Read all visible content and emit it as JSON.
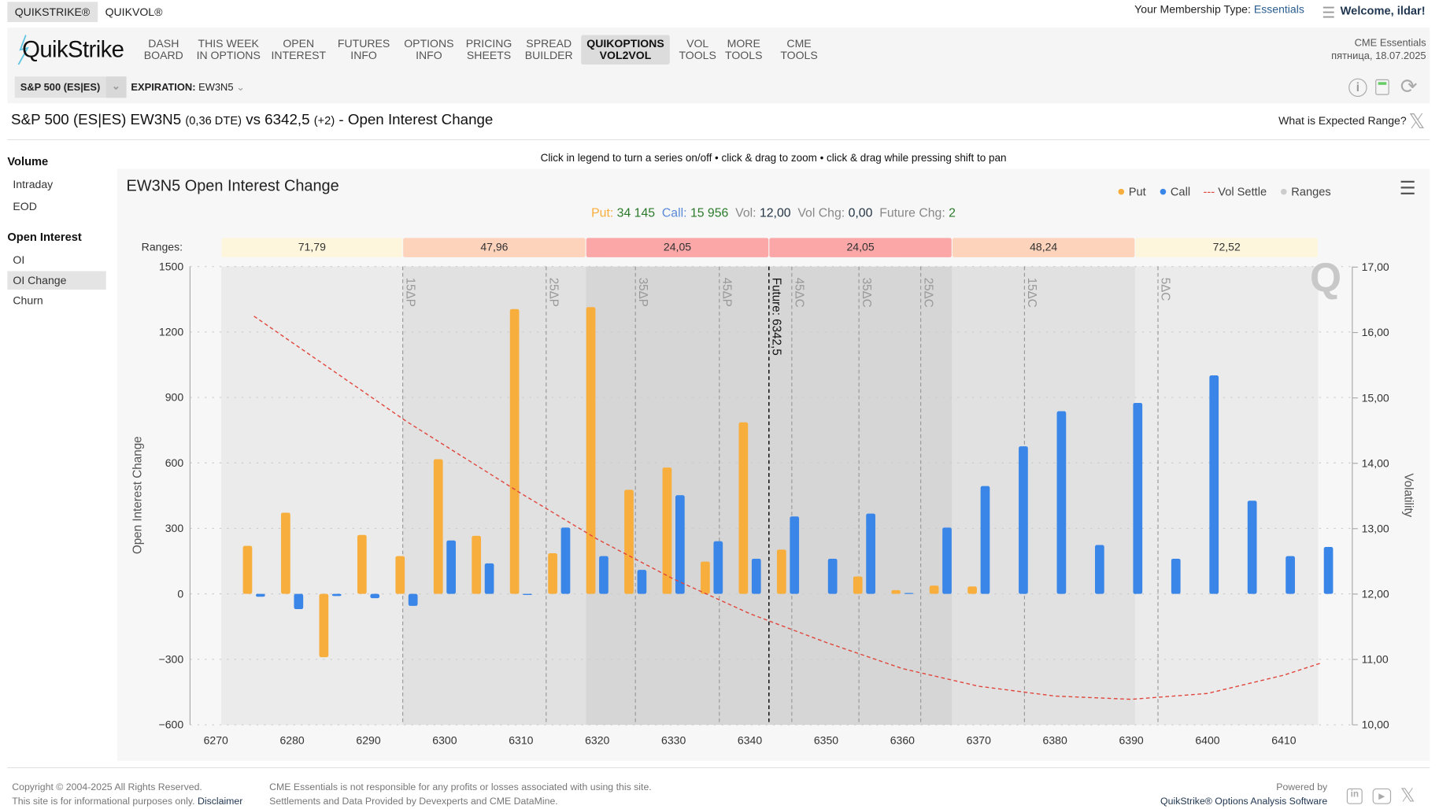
{
  "topbar": {
    "tabs": [
      "QUIKSTRIKE®",
      "QUIKVOL®"
    ],
    "membership_label": "Your Membership Type:",
    "membership_value": "Essentials",
    "welcome": "Welcome, ildar!"
  },
  "nav": {
    "logo": "QuikStrike",
    "items": [
      [
        "DASH",
        "BOARD"
      ],
      [
        "THIS WEEK",
        "IN OPTIONS"
      ],
      [
        "OPEN",
        "INTEREST"
      ],
      [
        "FUTURES",
        "INFO"
      ],
      [
        "OPTIONS",
        "INFO"
      ],
      [
        "PRICING",
        "SHEETS"
      ],
      [
        "SPREAD",
        "BUILDER"
      ],
      [
        "QUIKOPTIONS",
        "VOL2VOL"
      ],
      [
        "VOL",
        "TOOLS"
      ],
      [
        "MORE",
        "TOOLS"
      ],
      [
        "CME",
        "TOOLS"
      ]
    ],
    "active_index": 7,
    "org": "CME Essentials",
    "date": "пятница, 18.07.2025"
  },
  "selector": {
    "product": "S&P 500 (ES|ES)",
    "expiration_label": "EXPIRATION:",
    "expiration_value": "EW3N5"
  },
  "title": {
    "main": "S&P 500 (ES|ES) EW3N5",
    "dte": "(0,36 DTE)",
    "vs": "vs 6342,5",
    "chg": "(+2)",
    "suffix": "- Open Interest Change",
    "expected_range_link": "What is Expected Range?"
  },
  "sidebar": {
    "sections": [
      {
        "heading": "Volume",
        "items": [
          "Intraday",
          "EOD"
        ]
      },
      {
        "heading": "Open Interest",
        "items": [
          "OI",
          "OI Change",
          "Churn"
        ]
      }
    ],
    "selected": "OI Change"
  },
  "instructions": "Click in legend to turn a series on/off • click & drag to zoom • click & drag while pressing shift to pan",
  "chart_data": {
    "type": "bar",
    "title": "EW3N5 Open Interest Change",
    "summary": {
      "put_label": "Put:",
      "put_value": "34 145",
      "call_label": "Call:",
      "call_value": "15 956",
      "vol_label": "Vol:",
      "vol_value": "12,00",
      "volchg_label": "Vol Chg:",
      "volchg_value": "0,00",
      "futchg_label": "Future Chg:",
      "futchg_value": "2"
    },
    "legend": [
      "Put",
      "Call",
      "Vol Settle",
      "Ranges"
    ],
    "legend_placement": "top-right",
    "colors": {
      "put": "#f8ae3c",
      "call": "#3a86e8",
      "vol": "#e0463c"
    },
    "ylabel": "Open Interest Change",
    "y2label": "Volatility",
    "ylim": [
      -600,
      1500
    ],
    "yticks": [
      1500,
      1200,
      900,
      600,
      300,
      0,
      -300,
      -600
    ],
    "y2lim": [
      10,
      17
    ],
    "y2ticks": [
      "17,00",
      "16,00",
      "15,00",
      "14,00",
      "13,00",
      "12,00",
      "11,00",
      "10,00"
    ],
    "xticks": [
      6270,
      6280,
      6290,
      6300,
      6310,
      6320,
      6330,
      6340,
      6350,
      6360,
      6370,
      6380,
      6390,
      6400,
      6410
    ],
    "strikes": [
      6275,
      6280,
      6285,
      6290,
      6295,
      6300,
      6305,
      6310,
      6315,
      6320,
      6325,
      6330,
      6335,
      6340,
      6345,
      6350,
      6355,
      6360,
      6365,
      6370,
      6375,
      6380,
      6385,
      6390,
      6395,
      6400,
      6405,
      6410,
      6415
    ],
    "series": [
      {
        "name": "Put",
        "values": [
          220,
          372,
          -290,
          270,
          173,
          617,
          266,
          1305,
          186,
          1314,
          477,
          579,
          148,
          786,
          203,
          0,
          80,
          17,
          38,
          34,
          0,
          0,
          0,
          0,
          0,
          0,
          0,
          0,
          0
        ]
      },
      {
        "name": "Call",
        "values": [
          -13,
          -70,
          -10,
          -20,
          -55,
          245,
          140,
          -5,
          304,
          173,
          110,
          452,
          241,
          161,
          355,
          161,
          368,
          4,
          304,
          494,
          676,
          837,
          224,
          875,
          161,
          1001,
          427,
          173,
          215
        ]
      },
      {
        "name": "Vol Settle",
        "x": [
          6275,
          6295,
          6310,
          6320,
          6330,
          6340,
          6350,
          6360,
          6370,
          6380,
          6390,
          6400,
          6410,
          6415
        ],
        "values": [
          16.25,
          14.64,
          13.54,
          12.84,
          12.23,
          11.7,
          11.26,
          10.86,
          10.59,
          10.44,
          10.39,
          10.48,
          10.76,
          10.95
        ]
      }
    ],
    "ranges_label": "Ranges:",
    "ranges": [
      {
        "from": 6270.7,
        "to": 6294.5,
        "label": "71,79",
        "level": 0
      },
      {
        "from": 6294.5,
        "to": 6318.5,
        "label": "47,96",
        "level": 1
      },
      {
        "from": 6318.5,
        "to": 6342.5,
        "label": "24,05",
        "level": 2
      },
      {
        "from": 6342.5,
        "to": 6366.5,
        "label": "24,05",
        "level": 2
      },
      {
        "from": 6366.5,
        "to": 6390.5,
        "label": "48,24",
        "level": 1
      },
      {
        "from": 6390.5,
        "to": 6414.5,
        "label": "72,52",
        "level": 0
      }
    ],
    "delta_lines": [
      {
        "x": 6294.5,
        "label": "15ΔP"
      },
      {
        "x": 6313.3,
        "label": "25ΔP"
      },
      {
        "x": 6325,
        "label": "35ΔP"
      },
      {
        "x": 6336,
        "label": "45ΔP"
      },
      {
        "x": 6345.5,
        "label": "45ΔC"
      },
      {
        "x": 6354.3,
        "label": "35ΔC"
      },
      {
        "x": 6362.4,
        "label": "25ΔC"
      },
      {
        "x": 6376,
        "label": "15ΔC"
      },
      {
        "x": 6393.5,
        "label": "5ΔC"
      }
    ],
    "future_line": {
      "x": 6342.5,
      "label": "Future: 6342,5"
    }
  },
  "footer": {
    "copyright": "Copyright © 2004-2025 All Rights Reserved.",
    "info": "This site is for informational purposes only.",
    "disclaimer": "Disclaimer",
    "note1": "CME Essentials is not responsible for any profits or losses associated with using this site.",
    "note2": "Settlements and Data Provided by Devexperts and CME DataMine.",
    "powered": "Powered by",
    "software": "QuikStrike® Options Analysis Software"
  }
}
